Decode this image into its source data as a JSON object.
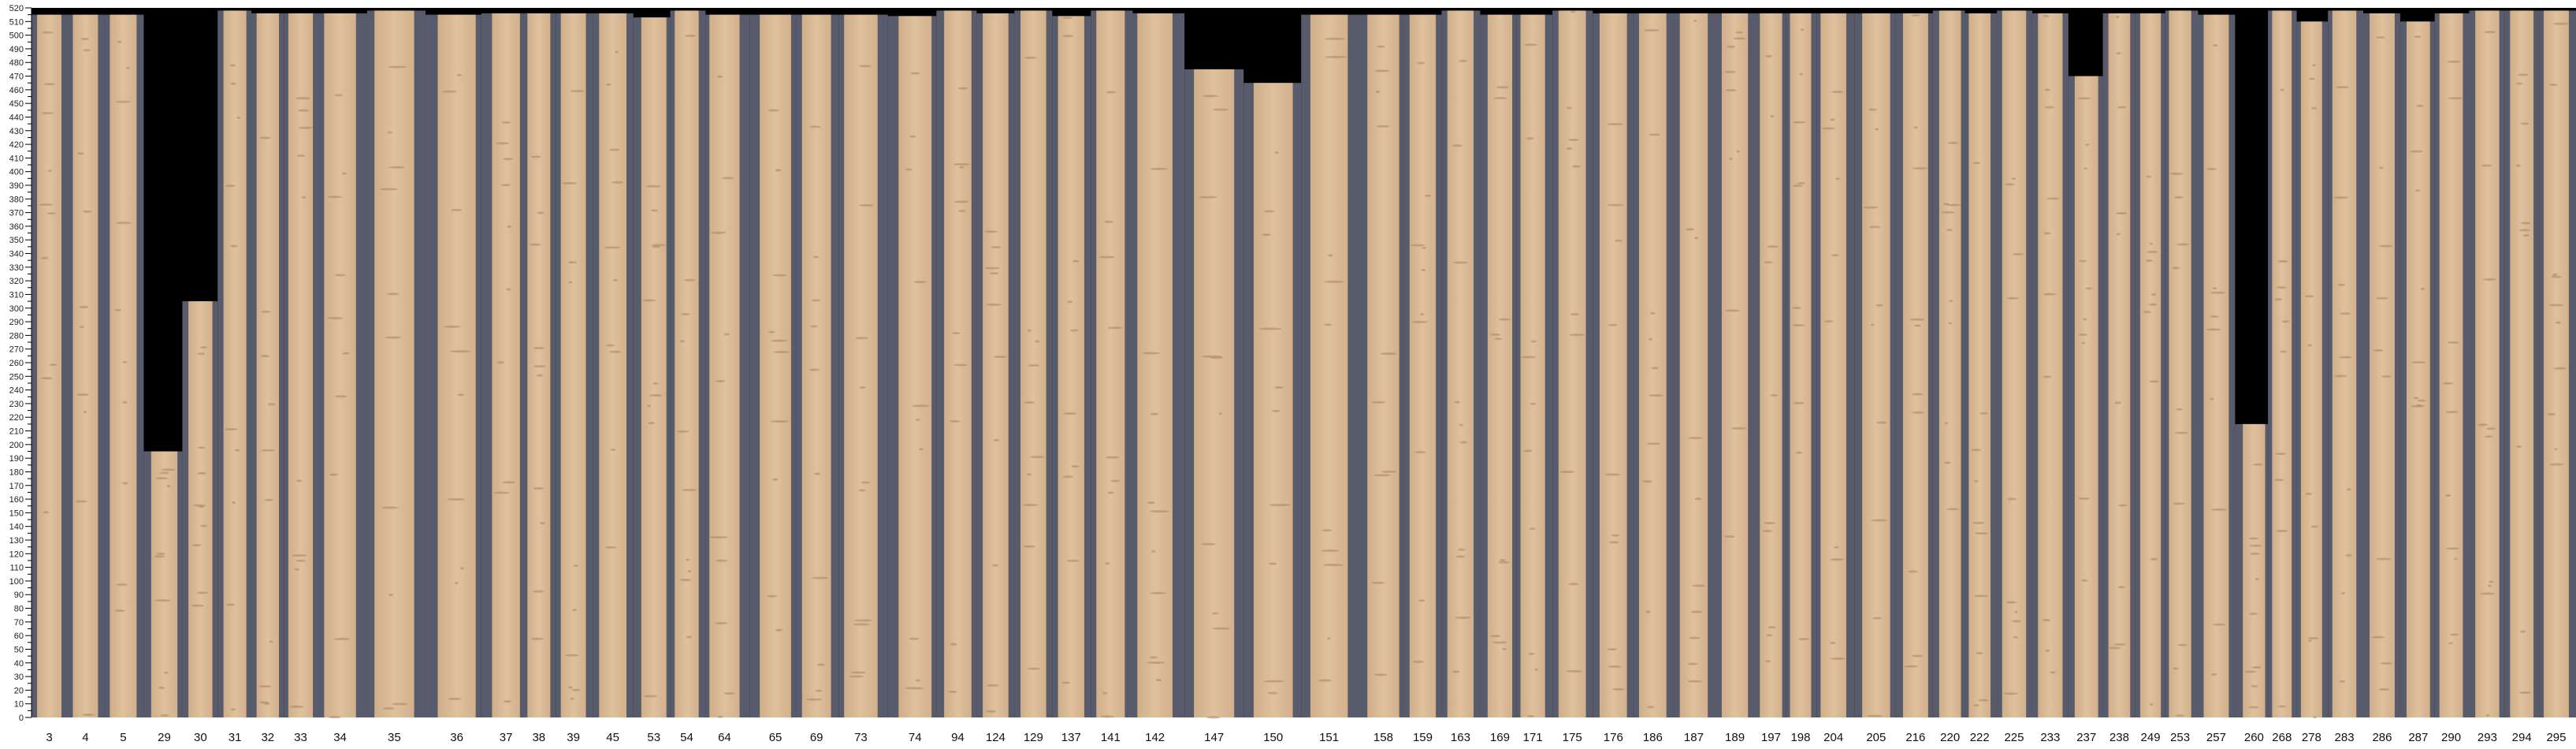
{
  "chart_data": {
    "type": "bar",
    "title": "",
    "xlabel": "",
    "ylabel": "",
    "ylim": [
      0,
      520
    ],
    "ytick_step": 10,
    "grid": false,
    "colors": {
      "board": "#d9b995",
      "gap": "#585b6b",
      "empty": "#000000"
    },
    "categories": [
      "3",
      "4",
      "5",
      "29",
      "30",
      "31",
      "32",
      "33",
      "34",
      "35",
      "36",
      "37",
      "38",
      "39",
      "45",
      "53",
      "54",
      "64",
      "65",
      "69",
      "73",
      "74",
      "94",
      "124",
      "129",
      "137",
      "141",
      "142",
      "147",
      "150",
      "151",
      "158",
      "159",
      "163",
      "169",
      "171",
      "175",
      "176",
      "186",
      "187",
      "189",
      "197",
      "198",
      "204",
      "205",
      "216",
      "220",
      "222",
      "225",
      "233",
      "237",
      "238",
      "249",
      "253",
      "257",
      "260",
      "268",
      "278",
      "283",
      "286",
      "287",
      "290",
      "293",
      "294",
      "295"
    ],
    "values": [
      515,
      515,
      515,
      195,
      305,
      518,
      516,
      516,
      516,
      518,
      515,
      516,
      516,
      516,
      516,
      513,
      518,
      515,
      515,
      515,
      515,
      514,
      518,
      516,
      518,
      514,
      518,
      516,
      475,
      465,
      515,
      515,
      515,
      518,
      515,
      515,
      518,
      516,
      516,
      516,
      516,
      516,
      516,
      516,
      516,
      516,
      518,
      516,
      518,
      516,
      470,
      516,
      516,
      518,
      515,
      215,
      518,
      510,
      518,
      516,
      510,
      516,
      518,
      518,
      518
    ]
  }
}
